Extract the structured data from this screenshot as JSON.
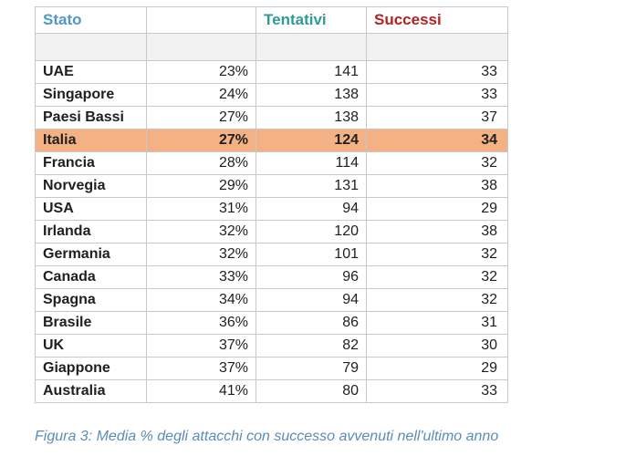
{
  "table": {
    "headers": {
      "stato": "Stato",
      "percent": "",
      "tentativi": "Tentativi",
      "successi": "Successi"
    },
    "header_colors": {
      "stato": "#4f98c7",
      "tentativi": "#2f9a9a",
      "successi": "#b22222"
    },
    "highlight_color": "#f4b183",
    "rows": [
      {
        "stato": "UAE",
        "percent": "23%",
        "tentativi": "141",
        "successi": "33",
        "highlight": false
      },
      {
        "stato": "Singapore",
        "percent": "24%",
        "tentativi": "138",
        "successi": "33",
        "highlight": false
      },
      {
        "stato": "Paesi Bassi",
        "percent": "27%",
        "tentativi": "138",
        "successi": "37",
        "highlight": false
      },
      {
        "stato": "Italia",
        "percent": "27%",
        "tentativi": "124",
        "successi": "34",
        "highlight": true
      },
      {
        "stato": "Francia",
        "percent": "28%",
        "tentativi": "114",
        "successi": "32",
        "highlight": false
      },
      {
        "stato": "Norvegia",
        "percent": "29%",
        "tentativi": "131",
        "successi": "38",
        "highlight": false
      },
      {
        "stato": "USA",
        "percent": "31%",
        "tentativi": "94",
        "successi": "29",
        "highlight": false
      },
      {
        "stato": "Irlanda",
        "percent": "32%",
        "tentativi": "120",
        "successi": "38",
        "highlight": false
      },
      {
        "stato": "Germania",
        "percent": "32%",
        "tentativi": "101",
        "successi": "32",
        "highlight": false
      },
      {
        "stato": "Canada",
        "percent": "33%",
        "tentativi": "96",
        "successi": "32",
        "highlight": false
      },
      {
        "stato": "Spagna",
        "percent": "34%",
        "tentativi": "94",
        "successi": "32",
        "highlight": false
      },
      {
        "stato": "Brasile",
        "percent": "36%",
        "tentativi": "86",
        "successi": "31",
        "highlight": false
      },
      {
        "stato": "UK",
        "percent": "37%",
        "tentativi": "82",
        "successi": "30",
        "highlight": false
      },
      {
        "stato": "Giappone",
        "percent": "37%",
        "tentativi": "79",
        "successi": "29",
        "highlight": false
      },
      {
        "stato": "Australia",
        "percent": "41%",
        "tentativi": "80",
        "successi": "33",
        "highlight": false
      }
    ]
  },
  "caption": "Figura 3: Media % degli attacchi con successo avvenuti nell'ultimo anno"
}
